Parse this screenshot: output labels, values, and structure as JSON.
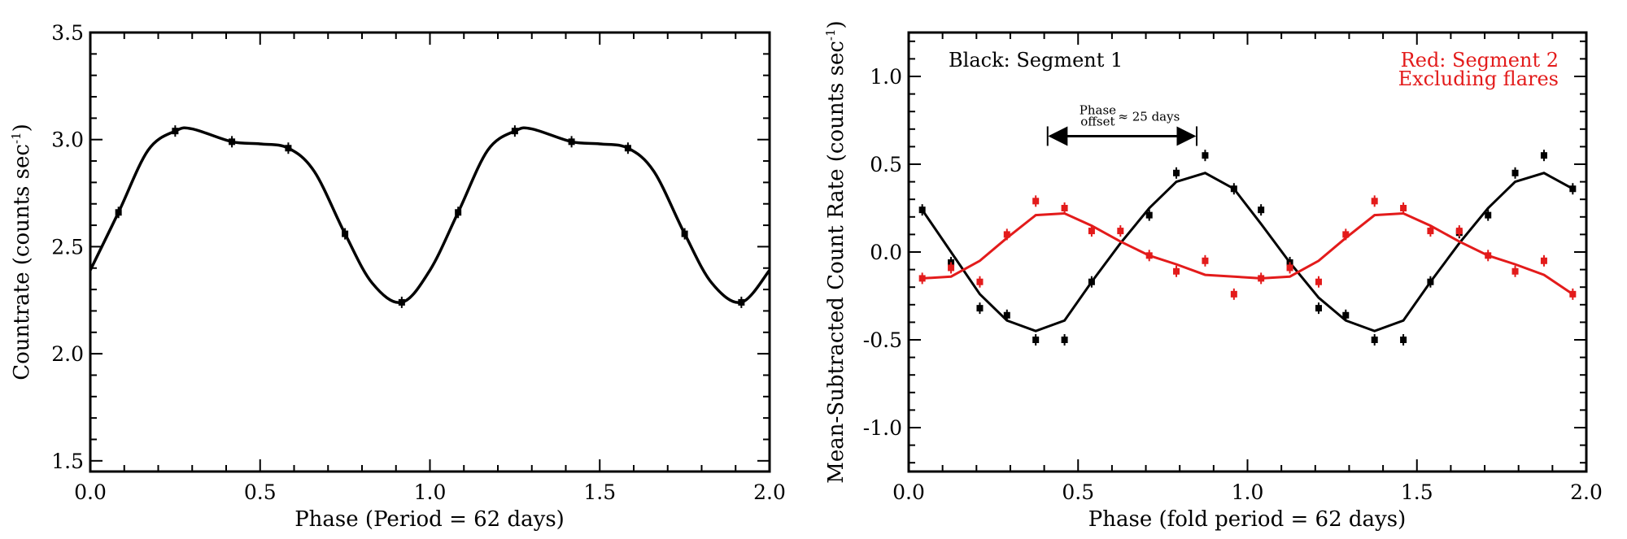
{
  "chart_data": [
    {
      "type": "line",
      "xlabel": "Phase (Period = 62 days)",
      "ylabel": "Countrate (counts sec",
      "ylabel_sup": "-1",
      "ylabel_close": ")",
      "xlim": [
        0,
        2
      ],
      "ylim": [
        1.45,
        3.5
      ],
      "xticks": [
        0.0,
        0.5,
        1.0,
        1.5,
        2.0
      ],
      "xtick_labels": [
        "0.0",
        "0.5",
        "1.0",
        "1.5",
        "2.0"
      ],
      "yticks": [
        1.5,
        2.0,
        2.5,
        3.0,
        3.5
      ],
      "ytick_labels": [
        "1.5",
        "2.0",
        "2.5",
        "3.0",
        "3.5"
      ],
      "series": [
        {
          "color": "#000000",
          "marker": "square-with-errorbar",
          "points": [
            {
              "x": 0.083,
              "y": 2.66
            },
            {
              "x": 0.25,
              "y": 3.04
            },
            {
              "x": 0.417,
              "y": 2.99
            },
            {
              "x": 0.583,
              "y": 2.96
            },
            {
              "x": 0.75,
              "y": 2.56
            },
            {
              "x": 0.917,
              "y": 2.24
            },
            {
              "x": 1.083,
              "y": 2.66
            },
            {
              "x": 1.25,
              "y": 3.04
            },
            {
              "x": 1.417,
              "y": 2.99
            },
            {
              "x": 1.583,
              "y": 2.96
            },
            {
              "x": 1.75,
              "y": 2.56
            },
            {
              "x": 1.917,
              "y": 2.24
            }
          ],
          "curve": [
            {
              "x": 0.0,
              "y": 2.39
            },
            {
              "x": 0.083,
              "y": 2.66
            },
            {
              "x": 0.17,
              "y": 2.95
            },
            {
              "x": 0.25,
              "y": 3.04
            },
            {
              "x": 0.3,
              "y": 3.05
            },
            {
              "x": 0.417,
              "y": 2.99
            },
            {
              "x": 0.5,
              "y": 2.98
            },
            {
              "x": 0.583,
              "y": 2.96
            },
            {
              "x": 0.66,
              "y": 2.85
            },
            {
              "x": 0.75,
              "y": 2.56
            },
            {
              "x": 0.83,
              "y": 2.33
            },
            {
              "x": 0.917,
              "y": 2.24
            },
            {
              "x": 1.0,
              "y": 2.39
            },
            {
              "x": 1.083,
              "y": 2.66
            },
            {
              "x": 1.17,
              "y": 2.95
            },
            {
              "x": 1.25,
              "y": 3.04
            },
            {
              "x": 1.3,
              "y": 3.05
            },
            {
              "x": 1.417,
              "y": 2.99
            },
            {
              "x": 1.5,
              "y": 2.98
            },
            {
              "x": 1.583,
              "y": 2.96
            },
            {
              "x": 1.66,
              "y": 2.85
            },
            {
              "x": 1.75,
              "y": 2.56
            },
            {
              "x": 1.83,
              "y": 2.33
            },
            {
              "x": 1.917,
              "y": 2.24
            },
            {
              "x": 2.0,
              "y": 2.39
            }
          ]
        }
      ]
    },
    {
      "type": "line",
      "xlabel": "Phase (fold period = 62 days)",
      "ylabel": "Mean-Subtracted Count Rate (counts sec",
      "ylabel_sup": "-1",
      "ylabel_close": ")",
      "xlim": [
        0,
        2
      ],
      "ylim": [
        -1.25,
        1.25
      ],
      "xticks": [
        0.0,
        0.5,
        1.0,
        1.5,
        2.0
      ],
      "xtick_labels": [
        "0.0",
        "0.5",
        "1.0",
        "1.5",
        "2.0"
      ],
      "yticks": [
        -1.0,
        -0.5,
        0.0,
        0.5,
        1.0
      ],
      "ytick_labels": [
        "-1.0",
        "-0.5",
        "0.0",
        "0.5",
        "1.0"
      ],
      "annotations": {
        "black_label": "Black: Segment 1",
        "red_label_1": "Red: Segment 2",
        "red_label_2": "Excluding flares",
        "phase_word": "Phase",
        "offset_text": "offset",
        "approx_text": "≈ 25 days",
        "arrow_from_x": 0.41,
        "arrow_to_x": 0.85,
        "arrow_y": 0.66
      },
      "series": [
        {
          "color": "#000000",
          "points": [
            {
              "x": 0.04,
              "y": 0.24
            },
            {
              "x": 0.125,
              "y": -0.06
            },
            {
              "x": 0.21,
              "y": -0.32
            },
            {
              "x": 0.29,
              "y": -0.36
            },
            {
              "x": 0.375,
              "y": -0.5
            },
            {
              "x": 0.46,
              "y": -0.5
            },
            {
              "x": 0.54,
              "y": -0.17
            },
            {
              "x": 0.71,
              "y": 0.21
            },
            {
              "x": 0.79,
              "y": 0.45
            },
            {
              "x": 0.875,
              "y": 0.55
            },
            {
              "x": 0.96,
              "y": 0.36
            },
            {
              "x": 1.04,
              "y": 0.24
            },
            {
              "x": 1.125,
              "y": -0.06
            },
            {
              "x": 1.21,
              "y": -0.32
            },
            {
              "x": 1.29,
              "y": -0.36
            },
            {
              "x": 1.375,
              "y": -0.5
            },
            {
              "x": 1.46,
              "y": -0.5
            },
            {
              "x": 1.54,
              "y": -0.17
            },
            {
              "x": 1.625,
              "y": 0.11
            },
            {
              "x": 1.71,
              "y": 0.21
            },
            {
              "x": 1.79,
              "y": 0.45
            },
            {
              "x": 1.875,
              "y": 0.55
            },
            {
              "x": 1.96,
              "y": 0.36
            }
          ],
          "curve": [
            {
              "x": 0.04,
              "y": 0.24
            },
            {
              "x": 0.125,
              "y": 0.0
            },
            {
              "x": 0.21,
              "y": -0.24
            },
            {
              "x": 0.29,
              "y": -0.39
            },
            {
              "x": 0.375,
              "y": -0.45
            },
            {
              "x": 0.46,
              "y": -0.39
            },
            {
              "x": 0.54,
              "y": -0.17
            },
            {
              "x": 0.625,
              "y": 0.05
            },
            {
              "x": 0.71,
              "y": 0.25
            },
            {
              "x": 0.79,
              "y": 0.4
            },
            {
              "x": 0.875,
              "y": 0.45
            },
            {
              "x": 0.96,
              "y": 0.36
            },
            {
              "x": 1.04,
              "y": 0.16
            },
            {
              "x": 1.125,
              "y": -0.06
            },
            {
              "x": 1.21,
              "y": -0.26
            },
            {
              "x": 1.29,
              "y": -0.39
            },
            {
              "x": 1.375,
              "y": -0.45
            },
            {
              "x": 1.46,
              "y": -0.39
            },
            {
              "x": 1.54,
              "y": -0.17
            },
            {
              "x": 1.625,
              "y": 0.05
            },
            {
              "x": 1.71,
              "y": 0.25
            },
            {
              "x": 1.79,
              "y": 0.4
            },
            {
              "x": 1.875,
              "y": 0.45
            },
            {
              "x": 1.96,
              "y": 0.36
            }
          ]
        },
        {
          "color": "#e31b1b",
          "points": [
            {
              "x": 0.04,
              "y": -0.15
            },
            {
              "x": 0.125,
              "y": -0.09
            },
            {
              "x": 0.21,
              "y": -0.17
            },
            {
              "x": 0.29,
              "y": 0.1
            },
            {
              "x": 0.375,
              "y": 0.29
            },
            {
              "x": 0.46,
              "y": 0.25
            },
            {
              "x": 0.54,
              "y": 0.12
            },
            {
              "x": 0.625,
              "y": 0.12
            },
            {
              "x": 0.71,
              "y": -0.02
            },
            {
              "x": 0.79,
              "y": -0.11
            },
            {
              "x": 0.875,
              "y": -0.05
            },
            {
              "x": 0.96,
              "y": -0.24
            },
            {
              "x": 1.04,
              "y": -0.15
            },
            {
              "x": 1.125,
              "y": -0.09
            },
            {
              "x": 1.21,
              "y": -0.17
            },
            {
              "x": 1.29,
              "y": 0.1
            },
            {
              "x": 1.375,
              "y": 0.29
            },
            {
              "x": 1.46,
              "y": 0.25
            },
            {
              "x": 1.54,
              "y": 0.12
            },
            {
              "x": 1.625,
              "y": 0.12
            },
            {
              "x": 1.71,
              "y": -0.02
            },
            {
              "x": 1.79,
              "y": -0.11
            },
            {
              "x": 1.875,
              "y": -0.05
            },
            {
              "x": 1.96,
              "y": -0.24
            }
          ],
          "curve": [
            {
              "x": 0.04,
              "y": -0.15
            },
            {
              "x": 0.125,
              "y": -0.14
            },
            {
              "x": 0.21,
              "y": -0.05
            },
            {
              "x": 0.29,
              "y": 0.08
            },
            {
              "x": 0.375,
              "y": 0.21
            },
            {
              "x": 0.46,
              "y": 0.22
            },
            {
              "x": 0.54,
              "y": 0.15
            },
            {
              "x": 0.625,
              "y": 0.06
            },
            {
              "x": 0.71,
              "y": -0.02
            },
            {
              "x": 0.79,
              "y": -0.07
            },
            {
              "x": 0.875,
              "y": -0.13
            },
            {
              "x": 0.96,
              "y": -0.14
            },
            {
              "x": 1.04,
              "y": -0.15
            },
            {
              "x": 1.125,
              "y": -0.14
            },
            {
              "x": 1.21,
              "y": -0.05
            },
            {
              "x": 1.29,
              "y": 0.08
            },
            {
              "x": 1.375,
              "y": 0.21
            },
            {
              "x": 1.46,
              "y": 0.22
            },
            {
              "x": 1.54,
              "y": 0.15
            },
            {
              "x": 1.625,
              "y": 0.06
            },
            {
              "x": 1.71,
              "y": -0.02
            },
            {
              "x": 1.79,
              "y": -0.07
            },
            {
              "x": 1.875,
              "y": -0.13
            },
            {
              "x": 1.96,
              "y": -0.24
            }
          ]
        }
      ]
    }
  ]
}
